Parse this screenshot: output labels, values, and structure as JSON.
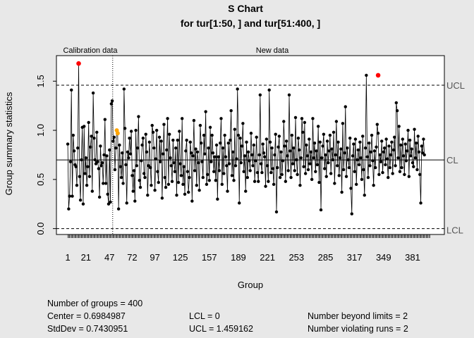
{
  "chart_data": {
    "type": "line",
    "title": "S Chart",
    "subtitle": "for tur[1:50, ] and tur[51:400, ]",
    "xlabel": "Group",
    "ylabel": "Group summary statistics",
    "n_groups": 400,
    "calibration_end": 50,
    "calibration_label": "Calibration data",
    "new_label": "New data",
    "xlim": [
      -11.5,
      416
    ],
    "ylim": [
      -0.06,
      1.76
    ],
    "x_ticks": [
      1,
      21,
      47,
      72,
      97,
      125,
      157,
      189,
      221,
      253,
      285,
      317,
      349,
      381
    ],
    "x_tick_labels": [
      "1",
      "21",
      "47",
      "72",
      "97",
      "125",
      "157",
      "189",
      "221",
      "253",
      "285",
      "317",
      "349",
      "381"
    ],
    "y_ticks": [
      0.0,
      0.5,
      1.0,
      1.5
    ],
    "y_tick_labels": [
      "0.0",
      "0.5",
      "1.0",
      "1.5"
    ],
    "center": 0.6984987,
    "lcl": 0,
    "ucl": 1.459162,
    "limit_labels": {
      "ucl": "UCL",
      "cl": "CL",
      "lcl": "LCL"
    },
    "out_of_control": [
      {
        "x": 13,
        "y": 1.68
      },
      {
        "x": 343,
        "y": 1.56
      }
    ],
    "violating_runs": [
      {
        "x": 55,
        "y": 1.0
      },
      {
        "x": 56,
        "y": 0.97
      }
    ],
    "values": [
      0.86,
      0.2,
      0.33,
      0.68,
      1.41,
      0.33,
      0.95,
      0.79,
      0.65,
      0.63,
      0.44,
      0.82,
      1.68,
      0.53,
      0.29,
      0.7,
      1.03,
      0.25,
      1.04,
      0.56,
      0.72,
      0.44,
      0.63,
      1.08,
      0.53,
      0.83,
      0.94,
      0.38,
      1.38,
      0.92,
      0.7,
      0.66,
      0.98,
      0.68,
      0.61,
      0.32,
      0.84,
      0.64,
      0.67,
      0.46,
      0.75,
      1.11,
      0.46,
      0.74,
      0.35,
      0.25,
      0.8,
      0.27,
      1.27,
      1.3,
      0.89,
      0.93,
      0.6,
      0.82,
      1.0,
      0.97,
      0.2,
      0.85,
      0.63,
      0.52,
      0.77,
      0.46,
      1.42,
      1.02,
      0.65,
      0.26,
      0.78,
      0.72,
      0.92,
      0.76,
      0.99,
      0.54,
      0.38,
      0.59,
      0.28,
      1.0,
      0.64,
      0.82,
      1.14,
      0.49,
      0.42,
      0.69,
      0.85,
      0.92,
      0.56,
      0.52,
      0.96,
      0.78,
      0.34,
      0.64,
      0.88,
      0.62,
      0.44,
      1.05,
      0.98,
      0.82,
      0.39,
      0.71,
      1.0,
      0.58,
      0.47,
      0.93,
      0.68,
      0.89,
      0.31,
      0.76,
      1.06,
      0.52,
      0.42,
      0.8,
      1.12,
      0.45,
      0.96,
      0.72,
      0.64,
      0.48,
      0.9,
      0.67,
      0.58,
      0.82,
      0.34,
      0.9,
      0.47,
      0.99,
      0.66,
      0.54,
      1.12,
      0.45,
      0.63,
      0.35,
      0.79,
      0.9,
      0.58,
      0.37,
      0.52,
      0.88,
      0.77,
      0.28,
      0.74,
      1.1,
      0.59,
      0.81,
      0.44,
      0.78,
      0.67,
      0.39,
      1.05,
      0.87,
      0.68,
      0.52,
      0.95,
      0.76,
      1.19,
      0.45,
      0.55,
      0.82,
      0.49,
      1.03,
      0.68,
      0.95,
      0.77,
      0.58,
      0.73,
      0.49,
      0.85,
      0.3,
      0.73,
      0.59,
      0.87,
      1.12,
      0.45,
      0.82,
      0.56,
      0.95,
      0.73,
      0.64,
      0.38,
      0.87,
      0.66,
      0.9,
      1.2,
      0.54,
      0.78,
      0.49,
      1.01,
      0.64,
      0.71,
      1.42,
      0.95,
      0.26,
      0.92,
      0.67,
      0.84,
      1.07,
      0.58,
      0.74,
      0.38,
      0.88,
      0.52,
      0.78,
      0.69,
      0.59,
      0.97,
      0.75,
      0.64,
      0.85,
      0.48,
      0.69,
      0.93,
      0.57,
      0.48,
      0.75,
      1.36,
      0.66,
      0.57,
      0.86,
      0.77,
      0.73,
      0.43,
      0.91,
      0.64,
      0.48,
      1.41,
      0.88,
      0.57,
      0.82,
      0.61,
      0.45,
      0.75,
      0.96,
      0.17,
      0.62,
      0.83,
      0.94,
      0.52,
      0.78,
      0.55,
      0.69,
      1.09,
      0.84,
      0.48,
      0.89,
      0.74,
      0.59,
      1.36,
      0.79,
      0.52,
      0.95,
      0.66,
      0.82,
      0.59,
      1.13,
      0.7,
      0.55,
      0.92,
      0.8,
      0.44,
      0.72,
      1.12,
      0.98,
      0.63,
      1.08,
      0.56,
      0.85,
      0.74,
      0.6,
      0.91,
      0.66,
      0.78,
      0.5,
      1.12,
      0.72,
      0.87,
      0.58,
      0.79,
      0.65,
      1.04,
      0.47,
      0.88,
      0.19,
      0.72,
      0.84,
      0.96,
      0.61,
      0.75,
      0.53,
      0.89,
      0.67,
      0.79,
      0.95,
      0.56,
      0.81,
      0.7,
      0.98,
      0.46,
      0.75,
      1.09,
      0.64,
      0.88,
      0.54,
      0.72,
      0.81,
      0.37,
      1.07,
      0.6,
      0.77,
      1.24,
      0.53,
      0.82,
      0.7,
      0.62,
      0.92,
      0.41,
      0.15,
      0.74,
      0.86,
      0.58,
      0.91,
      0.45,
      0.7,
      0.8,
      0.65,
      0.88,
      0.72,
      0.5,
      0.94,
      0.6,
      0.34,
      0.82,
      1.56,
      0.73,
      0.52,
      0.87,
      0.64,
      0.78,
      0.95,
      0.69,
      0.44,
      0.79,
      0.62,
      0.83,
      1.06,
      0.97,
      0.55,
      0.75,
      0.68,
      0.89,
      0.57,
      0.78,
      0.82,
      0.65,
      0.91,
      0.71,
      0.52,
      0.84,
      0.62,
      0.75,
      0.88,
      0.56,
      0.8,
      0.93,
      0.64,
      1.28,
      1.2,
      0.72,
      1.04,
      0.58,
      0.85,
      0.62,
      0.91,
      0.74,
      0.55,
      0.86,
      0.69,
      0.79,
      1.0,
      0.53,
      0.9,
      0.74,
      0.81,
      0.67,
      0.63,
      1.01,
      0.72,
      0.87,
      0.6,
      0.94,
      0.78,
      0.55,
      0.26,
      0.84,
      0.77,
      0.91,
      0.75
    ]
  },
  "stats": {
    "n_groups": "Number of groups = 400",
    "center": "Center = 0.6984987",
    "stddev": "StdDev = 0.7430951",
    "lcl": "LCL = 0",
    "ucl": "UCL = 1.459162",
    "beyond": "Number beyond limits = 2",
    "runs": "Number violating runs = 2"
  },
  "colors": {
    "background": "#e8e8e8",
    "plot_bg": "#ffffff",
    "point": "#000000",
    "beyond": "#ff0000",
    "runs": "#ffa500",
    "limit_label": "#555555"
  }
}
